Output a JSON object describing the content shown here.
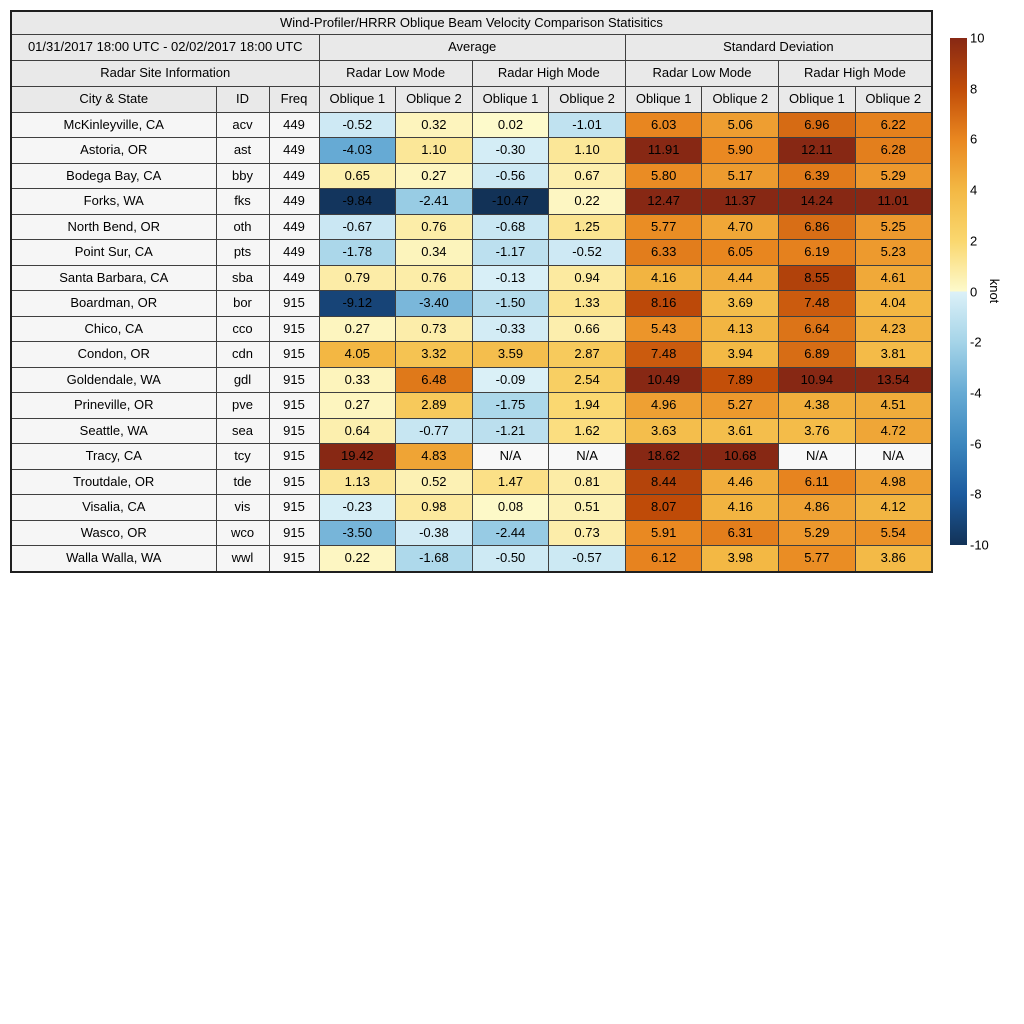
{
  "colors": {
    "header_bg": "#e9e9e9",
    "label_bg": "#f6f6f6",
    "grid_border": "#3f3f3f",
    "outer_border": "#1f1f1f",
    "page_bg": "#ffffff"
  },
  "chart_data": {
    "type": "heatmap-table",
    "title": "Wind-Profiler/HRRR Oblique Beam Velocity Comparison Statisitics",
    "date_range": "01/31/2017 18:00 UTC - 02/02/2017 18:00 UTC",
    "section_headers": {
      "average": "Average",
      "std": "Standard Deviation",
      "site_info": "Radar Site Information"
    },
    "mode_headers": [
      "Radar Low Mode",
      "Radar High Mode",
      "Radar Low Mode",
      "Radar High Mode"
    ],
    "column_headers": [
      "City & State",
      "ID",
      "Freq"
    ],
    "oblique_labels": [
      "Oblique 1",
      "Oblique 2"
    ],
    "na_text": "N/A",
    "colorbar": {
      "label": "knot",
      "min": -10,
      "max": 10,
      "ticks": [
        "10",
        "8",
        "6",
        "4",
        "2",
        "0",
        "-2",
        "-4",
        "-6",
        "-8",
        "-10"
      ],
      "na_color": "#f8f8f8",
      "positive_stops": [
        {
          "v": 0,
          "c": "#fdfacc"
        },
        {
          "v": 2,
          "c": "#fad76e"
        },
        {
          "v": 4,
          "c": "#f3b844"
        },
        {
          "v": 6,
          "c": "#e98720"
        },
        {
          "v": 8,
          "c": "#c14c08"
        },
        {
          "v": 10,
          "c": "#872814"
        }
      ],
      "negative_stops": [
        {
          "v": -10,
          "c": "#123257"
        },
        {
          "v": -8,
          "c": "#1d5c9f"
        },
        {
          "v": -6,
          "c": "#3c87be"
        },
        {
          "v": -4,
          "c": "#67abd4"
        },
        {
          "v": -2,
          "c": "#a5d4e8"
        },
        {
          "v": 0,
          "c": "#dcf1f8"
        }
      ]
    },
    "rows": [
      {
        "city": "McKinleyville, CA",
        "id": "acv",
        "freq": "449",
        "values": [
          "-0.52",
          "0.32",
          "0.02",
          "-1.01",
          "6.03",
          "5.06",
          "6.96",
          "6.22"
        ]
      },
      {
        "city": "Astoria, OR",
        "id": "ast",
        "freq": "449",
        "values": [
          "-4.03",
          "1.10",
          "-0.30",
          "1.10",
          "11.91",
          "5.90",
          "12.11",
          "6.28"
        ]
      },
      {
        "city": "Bodega Bay, CA",
        "id": "bby",
        "freq": "449",
        "values": [
          "0.65",
          "0.27",
          "-0.56",
          "0.67",
          "5.80",
          "5.17",
          "6.39",
          "5.29"
        ]
      },
      {
        "city": "Forks, WA",
        "id": "fks",
        "freq": "449",
        "values": [
          "-9.84",
          "-2.41",
          "-10.47",
          "0.22",
          "12.47",
          "11.37",
          "14.24",
          "11.01"
        ]
      },
      {
        "city": "North Bend, OR",
        "id": "oth",
        "freq": "449",
        "values": [
          "-0.67",
          "0.76",
          "-0.68",
          "1.25",
          "5.77",
          "4.70",
          "6.86",
          "5.25"
        ]
      },
      {
        "city": "Point Sur, CA",
        "id": "pts",
        "freq": "449",
        "values": [
          "-1.78",
          "0.34",
          "-1.17",
          "-0.52",
          "6.33",
          "6.05",
          "6.19",
          "5.23"
        ]
      },
      {
        "city": "Santa Barbara, CA",
        "id": "sba",
        "freq": "449",
        "values": [
          "0.79",
          "0.76",
          "-0.13",
          "0.94",
          "4.16",
          "4.44",
          "8.55",
          "4.61"
        ]
      },
      {
        "city": "Boardman, OR",
        "id": "bor",
        "freq": "915",
        "values": [
          "-9.12",
          "-3.40",
          "-1.50",
          "1.33",
          "8.16",
          "3.69",
          "7.48",
          "4.04"
        ]
      },
      {
        "city": "Chico, CA",
        "id": "cco",
        "freq": "915",
        "values": [
          "0.27",
          "0.73",
          "-0.33",
          "0.66",
          "5.43",
          "4.13",
          "6.64",
          "4.23"
        ]
      },
      {
        "city": "Condon, OR",
        "id": "cdn",
        "freq": "915",
        "values": [
          "4.05",
          "3.32",
          "3.59",
          "2.87",
          "7.48",
          "3.94",
          "6.89",
          "3.81"
        ]
      },
      {
        "city": "Goldendale, WA",
        "id": "gdl",
        "freq": "915",
        "values": [
          "0.33",
          "6.48",
          "-0.09",
          "2.54",
          "10.49",
          "7.89",
          "10.94",
          "13.54"
        ]
      },
      {
        "city": "Prineville, OR",
        "id": "pve",
        "freq": "915",
        "values": [
          "0.27",
          "2.89",
          "-1.75",
          "1.94",
          "4.96",
          "5.27",
          "4.38",
          "4.51"
        ]
      },
      {
        "city": "Seattle, WA",
        "id": "sea",
        "freq": "915",
        "values": [
          "0.64",
          "-0.77",
          "-1.21",
          "1.62",
          "3.63",
          "3.61",
          "3.76",
          "4.72"
        ]
      },
      {
        "city": "Tracy, CA",
        "id": "tcy",
        "freq": "915",
        "values": [
          "19.42",
          "4.83",
          "N/A",
          "N/A",
          "18.62",
          "10.68",
          "N/A",
          "N/A"
        ]
      },
      {
        "city": "Troutdale, OR",
        "id": "tde",
        "freq": "915",
        "values": [
          "1.13",
          "0.52",
          "1.47",
          "0.81",
          "8.44",
          "4.46",
          "6.11",
          "4.98"
        ]
      },
      {
        "city": "Visalia, CA",
        "id": "vis",
        "freq": "915",
        "values": [
          "-0.23",
          "0.98",
          "0.08",
          "0.51",
          "8.07",
          "4.16",
          "4.86",
          "4.12"
        ]
      },
      {
        "city": "Wasco, OR",
        "id": "wco",
        "freq": "915",
        "values": [
          "-3.50",
          "-0.38",
          "-2.44",
          "0.73",
          "5.91",
          "6.31",
          "5.29",
          "5.54"
        ]
      },
      {
        "city": "Walla Walla, WA",
        "id": "wwl",
        "freq": "915",
        "values": [
          "0.22",
          "-1.68",
          "-0.50",
          "-0.57",
          "6.12",
          "3.98",
          "5.77",
          "3.86"
        ]
      }
    ]
  }
}
